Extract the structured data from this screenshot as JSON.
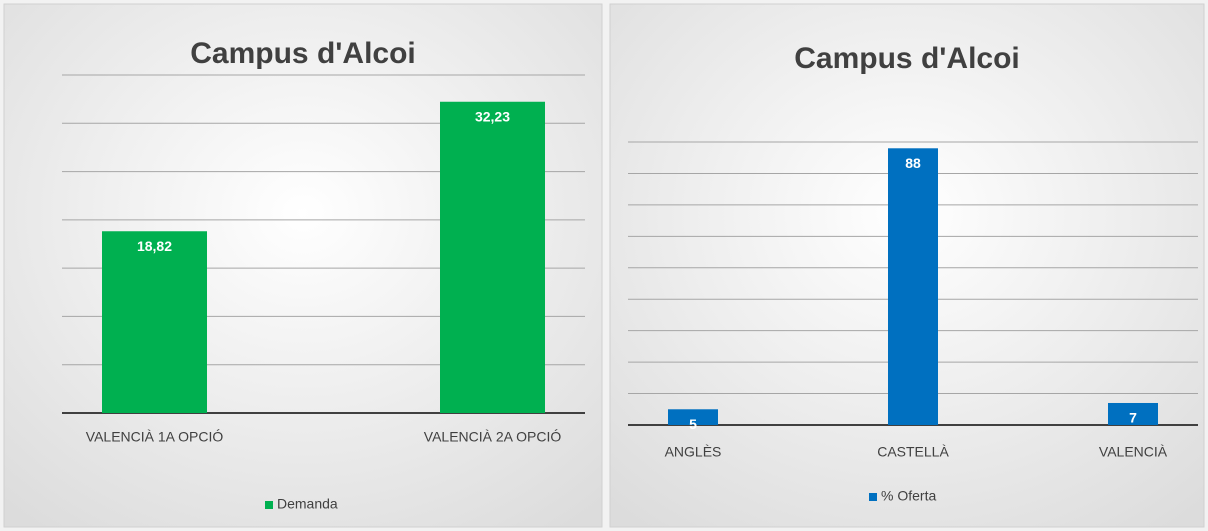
{
  "chart_data": [
    {
      "type": "bar",
      "title": "Campus d'Alcoi",
      "categories": [
        "VALENCIÀ 1A OPCIÓ",
        "VALENCIÀ 2A OPCIÓ"
      ],
      "series": [
        {
          "name": "Demanda",
          "color": "#00b050",
          "values": [
            18.82,
            32.23
          ],
          "value_labels": [
            "18,82",
            "32,23"
          ]
        }
      ],
      "ylim": [
        0,
        35
      ],
      "yticks": [
        0,
        5,
        10,
        15,
        20,
        25,
        30,
        35
      ],
      "grid": true,
      "legend": "bottom"
    },
    {
      "type": "bar",
      "title": "Campus d'Alcoi",
      "categories": [
        "ANGLÈS",
        "CASTELLÀ",
        "VALENCIÀ"
      ],
      "series": [
        {
          "name": "% Oferta",
          "color": "#0070c0",
          "values": [
            5,
            88,
            7
          ]
        }
      ],
      "ylim": [
        0,
        90
      ],
      "yticks": [
        0,
        10,
        20,
        30,
        40,
        50,
        60,
        70,
        80,
        90
      ],
      "grid": true,
      "legend": "bottom"
    }
  ]
}
